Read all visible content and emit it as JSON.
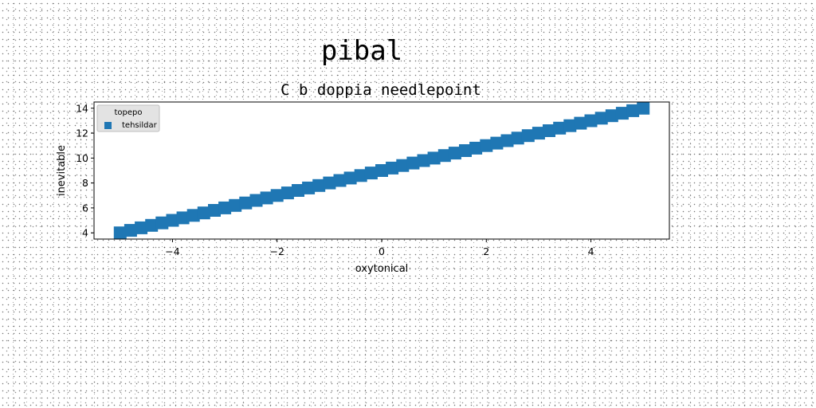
{
  "chart_data": {
    "type": "scatter",
    "suptitle": "pibal",
    "title": "C b doppia needlepoint",
    "xlabel": "oxytonical",
    "ylabel": "inevitable",
    "xlim": [
      -5.5,
      5.5
    ],
    "ylim": [
      3.5,
      14.5
    ],
    "xticks": [
      -4,
      -2,
      0,
      2,
      4
    ],
    "xtick_labels": [
      "−4",
      "−2",
      "0",
      "2",
      "4"
    ],
    "yticks": [
      4,
      6,
      8,
      10,
      12,
      14
    ],
    "ytick_labels": [
      "4",
      "6",
      "8",
      "10",
      "12",
      "14"
    ],
    "grid": false,
    "legend": {
      "title": "topepo",
      "placement": "top-left"
    },
    "series": [
      {
        "name": "tehsildar",
        "marker": "square",
        "color": "#1f77b4",
        "x": [
          -5.0,
          -4.8,
          -4.6,
          -4.4,
          -4.2,
          -4.0,
          -3.8,
          -3.6,
          -3.4,
          -3.2,
          -3.0,
          -2.8,
          -2.6,
          -2.4,
          -2.2,
          -2.0,
          -1.8,
          -1.6,
          -1.4,
          -1.2,
          -1.0,
          -0.8,
          -0.6,
          -0.4,
          -0.2,
          0.0,
          0.2,
          0.4,
          0.6,
          0.8,
          1.0,
          1.2,
          1.4,
          1.6,
          1.8,
          2.0,
          2.2,
          2.4,
          2.6,
          2.8,
          3.0,
          3.2,
          3.4,
          3.6,
          3.8,
          4.0,
          4.2,
          4.4,
          4.6,
          4.8,
          5.0
        ],
        "y": [
          4.0,
          4.2,
          4.4,
          4.6,
          4.8,
          5.0,
          5.2,
          5.4,
          5.6,
          5.8,
          6.0,
          6.2,
          6.4,
          6.6,
          6.8,
          7.0,
          7.2,
          7.4,
          7.6,
          7.8,
          8.0,
          8.2,
          8.4,
          8.6,
          8.8,
          9.0,
          9.2,
          9.4,
          9.6,
          9.8,
          10.0,
          10.2,
          10.4,
          10.6,
          10.8,
          11.0,
          11.2,
          11.4,
          11.6,
          11.8,
          12.0,
          12.2,
          12.4,
          12.6,
          12.8,
          13.0,
          13.2,
          13.4,
          13.6,
          13.8,
          14.0
        ]
      }
    ]
  }
}
